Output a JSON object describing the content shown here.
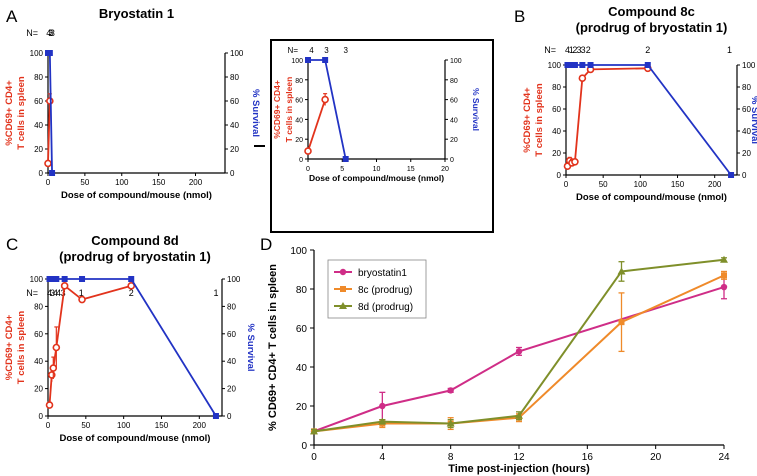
{
  "colors": {
    "red": "#e2331c",
    "blue": "#2233c4",
    "magenta": "#cf2d87",
    "orange": "#ef8a2a",
    "olive": "#7f8f2a",
    "black": "#000000"
  },
  "chart_data": [
    {
      "panel": "A",
      "type": "line",
      "title": "Bryostatin 1",
      "xlabel": "Dose of compound/mouse (nmol)",
      "ylabel": "%CD69+ CD4+ T cells in spleen",
      "y2label": "% Survival",
      "xlim": [
        0,
        240
      ],
      "ylim": [
        0,
        100
      ],
      "y2lim": [
        0,
        100
      ],
      "xticks": [
        0,
        50,
        100,
        150,
        200
      ],
      "yticks": [
        0,
        20,
        40,
        60,
        80,
        100
      ],
      "y2ticks": [
        0,
        20,
        40,
        60,
        80,
        100
      ],
      "n_prefix": "N=",
      "n_labels": [
        {
          "x": 1,
          "text": "4"
        },
        {
          "x": 3.5,
          "text": "3"
        },
        {
          "x": 6,
          "text": "3"
        }
      ],
      "series": [
        {
          "name": "%CD69+ CD4+ T cells",
          "axis": "left",
          "color": "red",
          "x": [
            0,
            2.5
          ],
          "values": [
            8,
            60
          ],
          "err": [
            0,
            6
          ]
        },
        {
          "name": "% Survival",
          "axis": "right",
          "color": "blue",
          "x": [
            0,
            2.5,
            5.5
          ],
          "values": [
            100,
            100,
            0
          ]
        }
      ]
    },
    {
      "panel": "A-inset",
      "type": "line",
      "xlabel": "Dose of compound/mouse (nmol)",
      "ylabel": "%CD69+ CD4+ T cells in spleen",
      "y2label": "% Survival",
      "xlim": [
        0,
        20
      ],
      "ylim": [
        0,
        100
      ],
      "y2lim": [
        0,
        100
      ],
      "xticks": [
        0,
        5,
        10,
        15,
        20
      ],
      "yticks": [
        0,
        20,
        40,
        60,
        80,
        100
      ],
      "y2ticks": [
        0,
        20,
        40,
        60,
        80,
        100
      ],
      "n_prefix": "N=",
      "n_labels": [
        {
          "x": 0.5,
          "text": "4"
        },
        {
          "x": 2.7,
          "text": "3"
        },
        {
          "x": 5.5,
          "text": "3"
        }
      ],
      "series": [
        {
          "name": "%CD69+ CD4+ T cells",
          "axis": "left",
          "color": "red",
          "x": [
            0,
            2.5
          ],
          "values": [
            8,
            60
          ],
          "err": [
            0,
            6
          ]
        },
        {
          "name": "% Survival",
          "axis": "right",
          "color": "blue",
          "x": [
            0,
            2.5,
            5.5
          ],
          "values": [
            100,
            100,
            0
          ]
        }
      ]
    },
    {
      "panel": "B",
      "type": "line",
      "title": "Compound 8c\n(prodrug of bryostatin 1)",
      "xlabel": "Dose of compound/mouse (nmol)",
      "ylabel": "%CD69+ CD4+ T cells in spleen",
      "y2label": "% Survival",
      "xlim": [
        0,
        230
      ],
      "ylim": [
        0,
        100
      ],
      "y2lim": [
        0,
        100
      ],
      "xticks": [
        0,
        50,
        100,
        150,
        200
      ],
      "yticks": [
        0,
        20,
        40,
        60,
        80,
        100
      ],
      "y2ticks": [
        0,
        20,
        40,
        60,
        80,
        100
      ],
      "n_prefix": "N=",
      "n_labels": [
        {
          "x": 2,
          "text": "4"
        },
        {
          "x": 7,
          "text": "1"
        },
        {
          "x": 12,
          "text": "2"
        },
        {
          "x": 17.5,
          "text": "3"
        },
        {
          "x": 23,
          "text": "3"
        },
        {
          "x": 30,
          "text": "2"
        },
        {
          "x": 110,
          "text": "2"
        },
        {
          "x": 220,
          "text": "1"
        }
      ],
      "series": [
        {
          "name": "%CD69+ CD4+ T cells",
          "axis": "left",
          "color": "red",
          "x": [
            2,
            5,
            8,
            12,
            22,
            33,
            110
          ],
          "values": [
            8,
            13,
            11,
            12,
            88,
            96,
            97
          ],
          "err": [
            0,
            3,
            3,
            2,
            2,
            1,
            2
          ]
        },
        {
          "name": "% Survival",
          "axis": "right",
          "color": "blue",
          "x": [
            2,
            5,
            8,
            12,
            22,
            33,
            110,
            222
          ],
          "values": [
            100,
            100,
            100,
            100,
            100,
            100,
            100,
            0
          ]
        }
      ]
    },
    {
      "panel": "C",
      "type": "line",
      "title": "Compound 8d\n(prodrug of bryostatin 1)",
      "xlabel": "Dose of compound/mouse (nmol)",
      "ylabel": "%CD69+ CD4+ T cells in spleen",
      "y2label": "% Survival",
      "xlim": [
        0,
        230
      ],
      "ylim": [
        0,
        100
      ],
      "y2lim": [
        0,
        100
      ],
      "xticks": [
        0,
        50,
        100,
        150,
        200
      ],
      "yticks": [
        0,
        20,
        40,
        60,
        80,
        100
      ],
      "y2ticks": [
        0,
        20,
        40,
        60,
        80,
        100
      ],
      "n_prefix": "N=",
      "n_labels": [
        {
          "x": 2,
          "text": "4"
        },
        {
          "x": 6,
          "text": "3"
        },
        {
          "x": 10,
          "text": "4"
        },
        {
          "x": 14,
          "text": "4"
        },
        {
          "x": 20,
          "text": "3"
        },
        {
          "x": 44,
          "text": "1"
        },
        {
          "x": 110,
          "text": "2"
        },
        {
          "x": 222,
          "text": "1"
        }
      ],
      "series": [
        {
          "name": "%CD69+ CD4+ T cells",
          "axis": "left",
          "color": "red",
          "x": [
            2,
            5,
            7,
            11,
            22,
            45,
            110
          ],
          "values": [
            8,
            30,
            35,
            50,
            95,
            85,
            95
          ],
          "err": [
            2,
            5,
            8,
            15,
            2,
            2,
            2
          ]
        },
        {
          "name": "% Survival",
          "axis": "right",
          "color": "blue",
          "x": [
            2,
            5,
            7,
            11,
            22,
            45,
            110,
            222
          ],
          "values": [
            100,
            100,
            100,
            100,
            100,
            100,
            100,
            0
          ]
        }
      ]
    },
    {
      "panel": "D",
      "type": "line",
      "xlabel": "Time post-injection  (hours)",
      "ylabel": "% CD69+ CD4+ T cells in spleen",
      "xlim": [
        0,
        24
      ],
      "ylim": [
        0,
        100
      ],
      "xticks": [
        0,
        4,
        8,
        12,
        16,
        20,
        24
      ],
      "yticks": [
        0,
        20,
        40,
        60,
        80,
        100
      ],
      "legend": "top-left",
      "series": [
        {
          "name": "bryostatin1",
          "color": "magenta",
          "marker": "circle",
          "x": [
            0,
            4,
            8,
            12,
            24
          ],
          "values": [
            7,
            20,
            28,
            48,
            81
          ],
          "err": [
            1,
            7,
            1,
            2,
            6
          ]
        },
        {
          "name": "8c (prodrug)",
          "color": "orange",
          "marker": "square",
          "x": [
            0,
            4,
            8,
            12,
            18,
            24
          ],
          "values": [
            7,
            11,
            11,
            14,
            63,
            87
          ],
          "err": [
            1,
            2,
            3,
            2,
            15,
            2
          ]
        },
        {
          "name": "8d (prodrug)",
          "color": "olive",
          "marker": "triangle",
          "x": [
            0,
            4,
            8,
            12,
            18,
            24
          ],
          "values": [
            7,
            12,
            11,
            15,
            89,
            95
          ],
          "err": [
            1,
            1,
            2,
            2,
            5,
            1
          ]
        }
      ]
    }
  ],
  "panel_labels": {
    "a": "A",
    "b": "B",
    "c": "C",
    "d": "D"
  }
}
